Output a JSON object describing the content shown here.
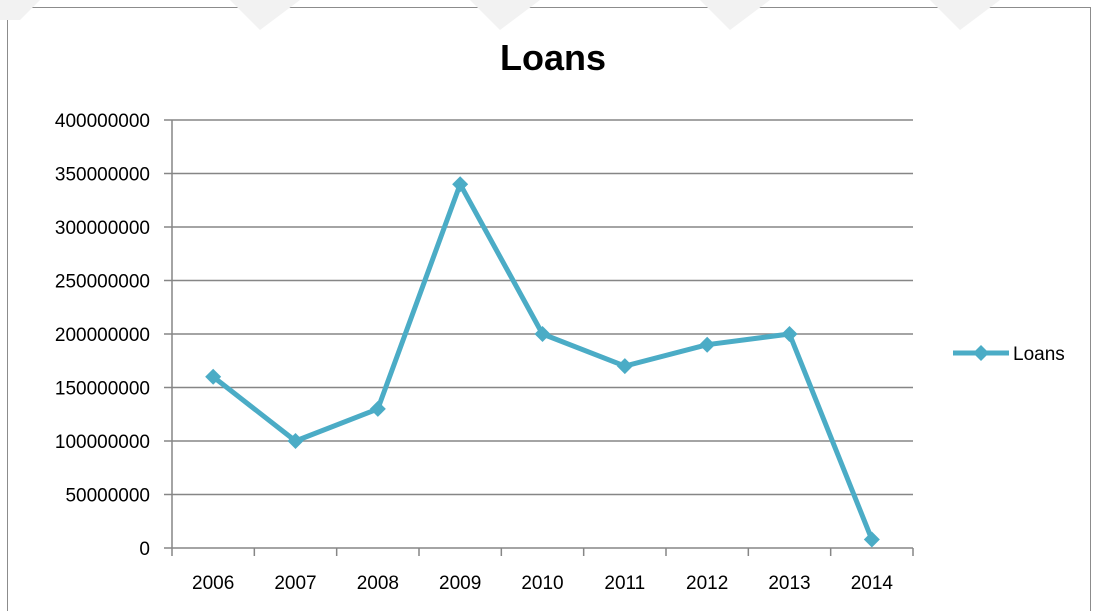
{
  "chart_data": {
    "type": "line",
    "title": "Loans",
    "xlabel": "",
    "ylabel": "",
    "categories": [
      "2006",
      "2007",
      "2008",
      "2009",
      "2010",
      "2011",
      "2012",
      "2013",
      "2014"
    ],
    "series": [
      {
        "name": "Loans",
        "color": "#4bacc6",
        "marker": "diamond",
        "values": [
          160000000,
          100000000,
          130000000,
          340000000,
          200000000,
          170000000,
          190000000,
          200000000,
          8000000
        ]
      }
    ],
    "ylim": [
      0,
      400000000
    ],
    "yticks": [
      0,
      50000000,
      100000000,
      150000000,
      200000000,
      250000000,
      300000000,
      350000000,
      400000000
    ],
    "ytick_labels": [
      "0",
      "50000000",
      "100000000",
      "150000000",
      "200000000",
      "250000000",
      "300000000",
      "350000000",
      "400000000"
    ],
    "grid": "horizontal",
    "legend_position": "right",
    "colors": {
      "line": "#4bacc6",
      "grid": "#868686",
      "axis": "#868686"
    }
  }
}
